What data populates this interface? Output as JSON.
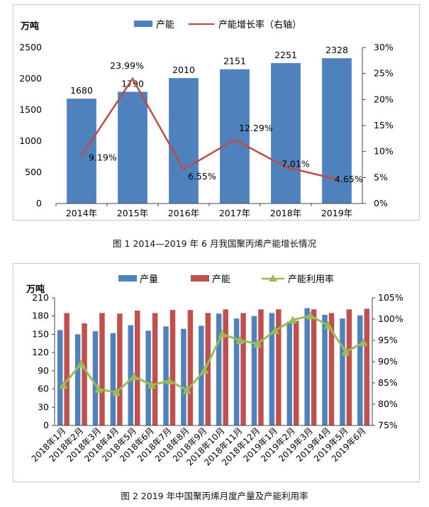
{
  "captions": {
    "fig1": "图 1  2014—2019 年 6 月我国聚丙烯产能增长情况",
    "fig2": "图 2  2019 年中国聚丙烯月度产量及产能利用率"
  },
  "colors": {
    "bar_blue": "#4f81bd",
    "bar_red": "#c0504d",
    "line_red": "#be4b48",
    "line_green": "#9bbb59"
  },
  "chart_data": [
    {
      "type": "bar",
      "unit_label": "万吨",
      "legend": {
        "bar": "产能",
        "line": "产能增长率（右轴）"
      },
      "categories": [
        "2014年",
        "2015年",
        "2016年",
        "2017年",
        "2018年",
        "2019年"
      ],
      "series": [
        {
          "name": "产能",
          "kind": "bar",
          "axis": "left",
          "values": [
            1680,
            1790,
            2010,
            2151,
            2251,
            2328
          ]
        },
        {
          "name": "产能增长率（右轴）",
          "kind": "line",
          "axis": "right",
          "values": [
            9.19,
            23.99,
            6.55,
            12.29,
            7.01,
            4.65
          ]
        }
      ],
      "value_labels": [
        "1680",
        "1790",
        "2010",
        "2151",
        "2251",
        "2328"
      ],
      "rate_labels": [
        "9.19%",
        "23.99%",
        "6.55%",
        "12.29%",
        "7.01%",
        "4.65%"
      ],
      "ylim": [
        0,
        2500
      ],
      "yticks": [
        "0",
        "500",
        "1000",
        "1500",
        "2000",
        "2500"
      ],
      "y2lim": [
        0,
        30
      ],
      "y2ticks": [
        "0%",
        "5%",
        "10%",
        "15%",
        "20%",
        "25%",
        "30%"
      ],
      "legend_position": "top"
    },
    {
      "type": "bar",
      "unit_label": "万吨",
      "legend": {
        "bar1": "产量",
        "bar2": "产能",
        "line": "产能利用率"
      },
      "categories": [
        "2018年1月",
        "2018年2月",
        "2018年3月",
        "2018年4月",
        "2018年5月",
        "2018年6月",
        "2018年7月",
        "2018年8月",
        "2018年9月",
        "2018年10月",
        "2018年11月",
        "2018年12月",
        "2019年1月",
        "2019年2月",
        "2019年3月",
        "2019年4月",
        "2019年5月",
        "2019年6月"
      ],
      "series": [
        {
          "name": "产量",
          "kind": "bar",
          "axis": "left",
          "values": [
            157,
            150,
            155,
            152,
            165,
            156,
            163,
            159,
            164,
            184,
            176,
            180,
            185,
            171,
            193,
            182,
            176,
            181
          ]
        },
        {
          "name": "产能",
          "kind": "bar",
          "axis": "left",
          "values": [
            185,
            168,
            185,
            184,
            189,
            185,
            190,
            190,
            185,
            191,
            185,
            191,
            191,
            172,
            191,
            185,
            191,
            192
          ]
        },
        {
          "name": "产能利用率",
          "kind": "line",
          "axis": "right",
          "values": [
            84.5,
            89.5,
            83.5,
            82.8,
            86.5,
            84.5,
            85.5,
            83.3,
            88.0,
            96.5,
            95.0,
            94.2,
            97.3,
            99.8,
            100.8,
            98.5,
            92.3,
            94.5
          ]
        }
      ],
      "ylim": [
        0,
        210
      ],
      "yticks": [
        "0",
        "30",
        "60",
        "90",
        "120",
        "150",
        "180",
        "210"
      ],
      "y2lim": [
        75,
        105
      ],
      "y2ticks": [
        "75%",
        "80%",
        "85%",
        "90%",
        "95%",
        "100%",
        "105%"
      ],
      "legend_position": "top"
    }
  ]
}
